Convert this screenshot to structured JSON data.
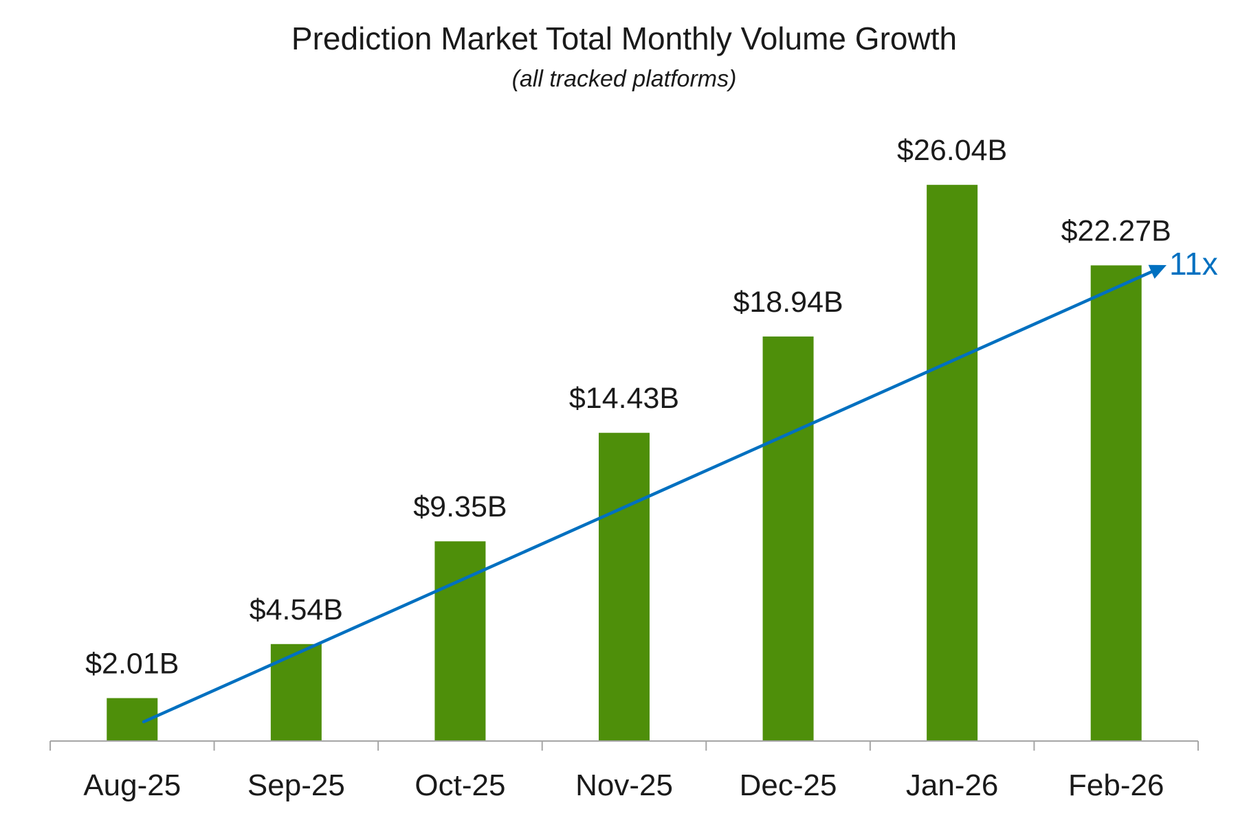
{
  "chart_data": {
    "type": "bar",
    "title": "Prediction Market Total Monthly Volume Growth",
    "subtitle": "(all tracked platforms)",
    "categories": [
      "Aug-25",
      "Sep-25",
      "Oct-25",
      "Nov-25",
      "Dec-25",
      "Jan-26",
      "Feb-26"
    ],
    "values": [
      2.01,
      4.54,
      9.35,
      14.43,
      18.94,
      26.04,
      22.27
    ],
    "data_labels": [
      "$2.01B",
      "$4.54B",
      "$9.35B",
      "$14.43B",
      "$18.94B",
      "$26.04B",
      "$22.27B"
    ],
    "xlabel": "",
    "ylabel": "",
    "ylim": [
      0,
      30
    ],
    "grid": false,
    "legend": "none",
    "annotation": {
      "type": "trend-arrow",
      "label": "11x"
    },
    "colors": {
      "bar": "#4E8F0A",
      "trend": "#0070C0",
      "axis": "#A6A6A6",
      "text": "#1A1A1A"
    }
  }
}
